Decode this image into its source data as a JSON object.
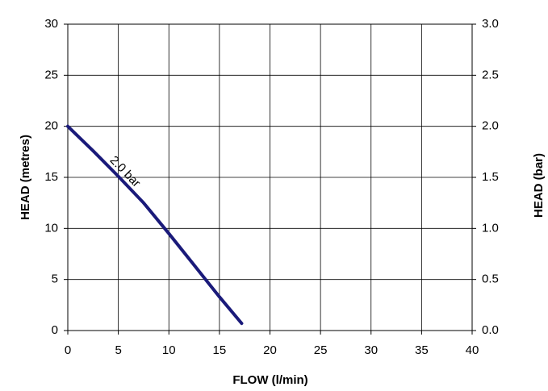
{
  "chart_data": {
    "type": "line",
    "x_label": "FLOW (l/min)",
    "y_label": "HEAD (metres)",
    "y2_label": "HEAD (bar)",
    "series": [
      {
        "name": "2.0 bar",
        "color": "#1a1a7a",
        "x": [
          0,
          2.5,
          5,
          7.5,
          10,
          12.5,
          15,
          17.2
        ],
        "values": [
          20,
          17.6,
          15.1,
          12.5,
          9.5,
          6.4,
          3.3,
          0.7
        ]
      }
    ],
    "xlim": [
      0,
      40
    ],
    "xticks": [
      0,
      5,
      10,
      15,
      20,
      25,
      30,
      35,
      40
    ],
    "ylim": [
      0,
      30
    ],
    "yticks": [
      0,
      5,
      10,
      15,
      20,
      25,
      30
    ],
    "y2lim": [
      0,
      3
    ],
    "y2ticks": [
      {
        "value": 0,
        "label": "0.0"
      },
      0.5,
      {
        "value": 1,
        "label": "1.0"
      },
      1.5,
      {
        "value": 2,
        "label": "2.0"
      },
      2.5,
      {
        "value": 3,
        "label": "3.0"
      }
    ],
    "grid": true
  }
}
